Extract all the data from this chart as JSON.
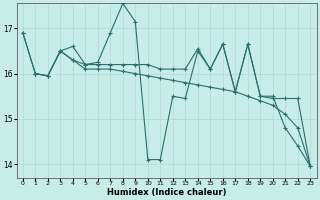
{
  "title": "",
  "xlabel": "Humidex (Indice chaleur)",
  "bg_color": "#c8ece8",
  "grid_color": "#b0d8d0",
  "line_color": "#2a7068",
  "xlim": [
    -0.5,
    23.5
  ],
  "ylim": [
    13.7,
    17.55
  ],
  "yticks": [
    14,
    15,
    16,
    17
  ],
  "xticks": [
    0,
    1,
    2,
    3,
    4,
    5,
    6,
    7,
    8,
    9,
    10,
    11,
    12,
    13,
    14,
    15,
    16,
    17,
    18,
    19,
    20,
    21,
    22,
    23
  ],
  "line1": [
    [
      0,
      16.9
    ],
    [
      1,
      16.0
    ],
    [
      2,
      15.95
    ],
    [
      3,
      16.5
    ],
    [
      4,
      16.6
    ],
    [
      5,
      16.2
    ],
    [
      6,
      16.25
    ],
    [
      7,
      16.9
    ],
    [
      8,
      17.55
    ],
    [
      9,
      17.15
    ],
    [
      10,
      14.1
    ],
    [
      11,
      14.1
    ],
    [
      12,
      15.5
    ],
    [
      13,
      15.45
    ],
    [
      14,
      16.5
    ],
    [
      15,
      16.1
    ],
    [
      16,
      16.65
    ],
    [
      17,
      15.6
    ],
    [
      18,
      16.65
    ],
    [
      19,
      15.5
    ],
    [
      20,
      15.5
    ],
    [
      21,
      14.8
    ],
    [
      22,
      14.4
    ],
    [
      23,
      13.95
    ]
  ],
  "line2": [
    [
      0,
      16.9
    ],
    [
      1,
      16.0
    ],
    [
      2,
      15.95
    ],
    [
      3,
      16.5
    ],
    [
      4,
      16.3
    ],
    [
      5,
      16.1
    ],
    [
      6,
      16.1
    ],
    [
      7,
      16.1
    ],
    [
      8,
      16.05
    ],
    [
      9,
      16.0
    ],
    [
      10,
      15.95
    ],
    [
      11,
      15.9
    ],
    [
      12,
      15.85
    ],
    [
      13,
      15.8
    ],
    [
      14,
      15.75
    ],
    [
      15,
      15.7
    ],
    [
      16,
      15.65
    ],
    [
      17,
      15.6
    ],
    [
      18,
      15.5
    ],
    [
      19,
      15.4
    ],
    [
      20,
      15.3
    ],
    [
      21,
      15.1
    ],
    [
      22,
      14.8
    ],
    [
      23,
      13.95
    ]
  ],
  "line3": [
    [
      1,
      16.0
    ],
    [
      2,
      15.95
    ],
    [
      3,
      16.5
    ],
    [
      4,
      16.3
    ],
    [
      5,
      16.2
    ],
    [
      6,
      16.2
    ],
    [
      7,
      16.2
    ],
    [
      8,
      16.2
    ],
    [
      9,
      16.2
    ],
    [
      10,
      16.2
    ],
    [
      11,
      16.1
    ],
    [
      12,
      16.1
    ],
    [
      13,
      16.1
    ],
    [
      14,
      16.55
    ],
    [
      15,
      16.1
    ],
    [
      16,
      16.65
    ],
    [
      17,
      15.6
    ],
    [
      18,
      16.65
    ],
    [
      19,
      15.5
    ],
    [
      20,
      15.45
    ],
    [
      21,
      15.45
    ],
    [
      22,
      15.45
    ],
    [
      23,
      13.95
    ]
  ]
}
